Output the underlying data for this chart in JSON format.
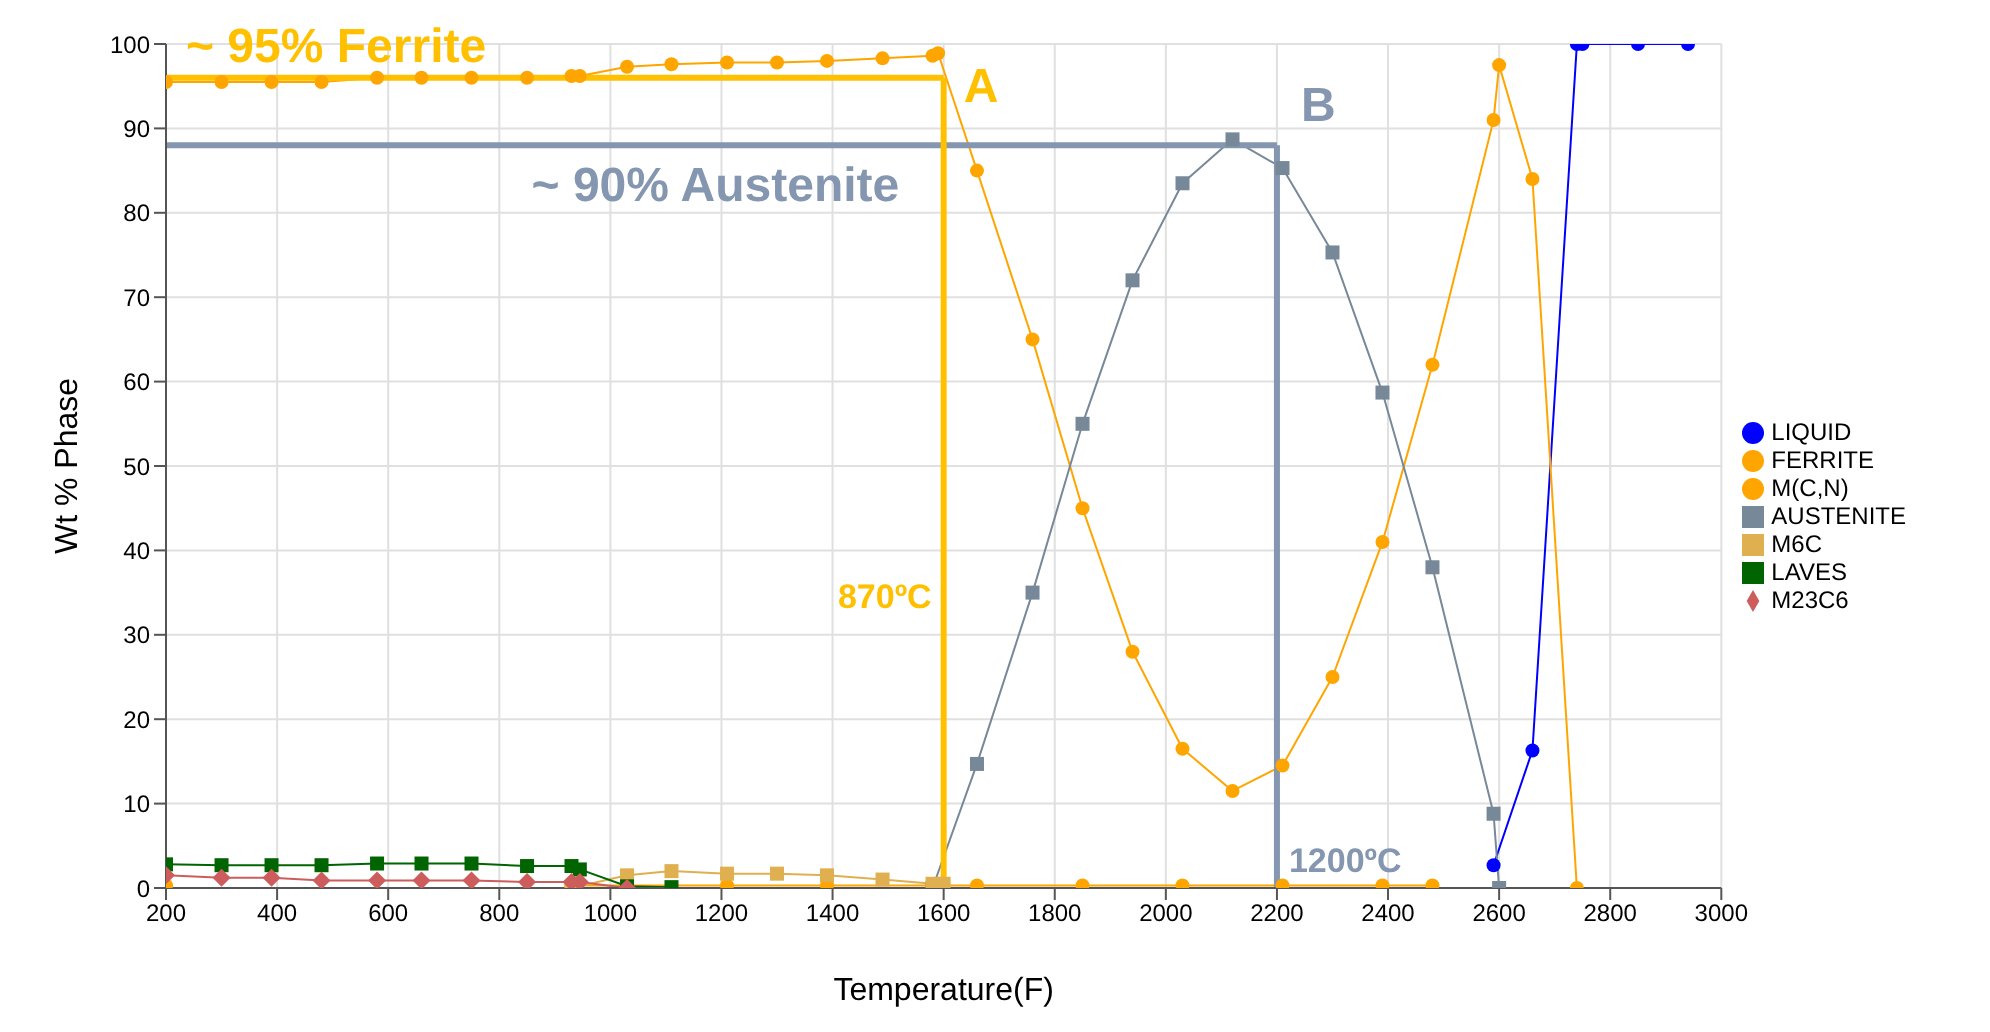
{
  "chart_data": {
    "type": "line",
    "xlabel": "Temperature(F)",
    "ylabel": "Wt % Phase",
    "xlim": [
      200,
      3000
    ],
    "xticks": [
      200,
      400,
      600,
      800,
      1000,
      1200,
      1400,
      1600,
      1800,
      2000,
      2200,
      2400,
      2600,
      2800,
      3000
    ],
    "ylim": [
      0,
      100
    ],
    "yticks": [
      0,
      10,
      20,
      30,
      40,
      50,
      60,
      70,
      80,
      90,
      100
    ],
    "grid": true,
    "legend": "right",
    "series": [
      {
        "name": "LIQUID",
        "color": "#0000ff",
        "marker": "circle",
        "x": [
          2590,
          2660,
          2740,
          2750,
          2850,
          2940
        ],
        "values": [
          2.7,
          16.3,
          100,
          100,
          100,
          100
        ]
      },
      {
        "name": "FERRITE",
        "color": "#ffa500",
        "marker": "circle",
        "x": [
          200,
          300,
          390,
          480,
          580,
          660,
          750,
          850,
          930,
          945,
          1030,
          1110,
          1210,
          1300,
          1390,
          1490,
          1580,
          1590,
          1660,
          1760,
          1850,
          1940,
          2030,
          2120,
          2210,
          2300,
          2390,
          2480,
          2590,
          2600,
          2660,
          2740
        ],
        "values": [
          95.5,
          95.5,
          95.5,
          95.5,
          96,
          96,
          96,
          96,
          96.2,
          96.2,
          97.3,
          97.6,
          97.8,
          97.8,
          98,
          98.3,
          98.6,
          98.9,
          85,
          65,
          45,
          28,
          16.5,
          11.5,
          14.5,
          25,
          41,
          62,
          91,
          97.5,
          84,
          0
        ]
      },
      {
        "name": "M(C,N)",
        "color": "#ffa500",
        "marker": "circle",
        "x": [
          200,
          480,
          750,
          930,
          1030,
          1210,
          1390,
          1580,
          1660,
          1850,
          2030,
          2210,
          2390,
          2480
        ],
        "values": [
          0.3,
          null,
          null,
          0.3,
          0.3,
          0.3,
          0.3,
          0.3,
          0.3,
          0.3,
          0.3,
          0.3,
          0.3,
          0.3
        ]
      },
      {
        "name": "AUSTENITE",
        "color": "#778899",
        "marker": "square",
        "x": [
          1580,
          1660,
          1760,
          1850,
          1940,
          2030,
          2120,
          2210,
          2300,
          2390,
          2480,
          2590,
          2600
        ],
        "values": [
          0,
          14.7,
          35,
          55,
          72,
          83.5,
          88.7,
          85.3,
          75.3,
          58.7,
          38,
          8.8,
          0
        ]
      },
      {
        "name": "M6C",
        "color": "#e0b050",
        "marker": "square",
        "x": [
          930,
          1030,
          1110,
          1210,
          1300,
          1390,
          1490,
          1580,
          1600
        ],
        "values": [
          0,
          1.5,
          2,
          1.7,
          1.7,
          1.5,
          1,
          0.5,
          0.5
        ]
      },
      {
        "name": "LAVES",
        "color": "#006400",
        "marker": "square",
        "x": [
          200,
          300,
          390,
          480,
          580,
          660,
          750,
          850,
          930,
          945,
          1030,
          1110
        ],
        "values": [
          2.8,
          2.7,
          2.7,
          2.7,
          2.9,
          2.9,
          2.9,
          2.6,
          2.6,
          2.2,
          0.2,
          0.1
        ]
      },
      {
        "name": "M23C6",
        "color": "#cd5c5c",
        "marker": "diamond",
        "x": [
          200,
          300,
          390,
          480,
          580,
          660,
          750,
          850,
          930,
          945,
          1030
        ],
        "values": [
          1.5,
          1.2,
          1.2,
          0.9,
          0.9,
          0.9,
          0.9,
          0.7,
          0.7,
          0.7,
          0
        ]
      }
    ],
    "ref_lines": [
      {
        "axis": "y",
        "value": 96,
        "label": "~ 95% Ferrite",
        "color": "#ffc000"
      },
      {
        "axis": "x",
        "value": 1600,
        "label": "870ºC",
        "color": "#ffc000"
      },
      {
        "axis": "y",
        "value": 88,
        "label": "~ 90% Austenite",
        "color": "#8496b0"
      },
      {
        "axis": "x",
        "value": 2200,
        "label": "1200ºC",
        "color": "#8496b0"
      }
    ],
    "annotations": [
      "A",
      "B"
    ]
  }
}
